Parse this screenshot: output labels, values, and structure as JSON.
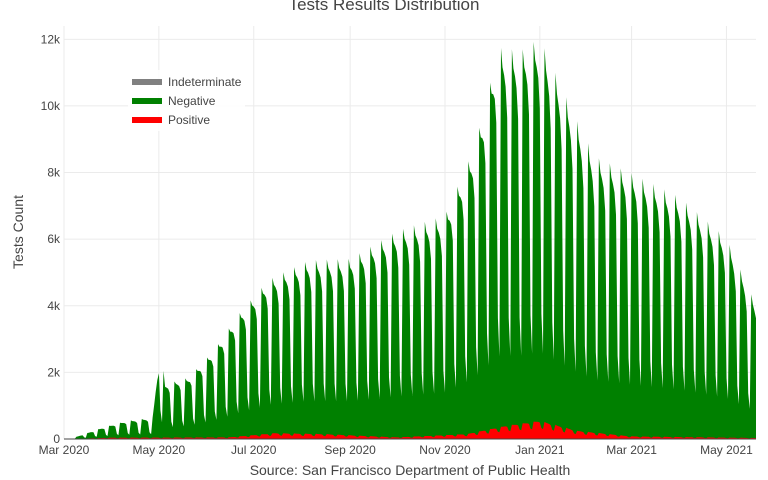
{
  "chart_data": {
    "type": "area",
    "title": "Tests Results Distribution",
    "xlabel": "Source: San Francisco Department of Public Health",
    "ylabel": "Tests Count",
    "x_range": [
      "2020-03-01",
      "2021-05-20"
    ],
    "ylim": [
      0,
      12400
    ],
    "y_ticks": [
      {
        "value": 0,
        "label": "0"
      },
      {
        "value": 2000,
        "label": "2k"
      },
      {
        "value": 4000,
        "label": "4k"
      },
      {
        "value": 6000,
        "label": "6k"
      },
      {
        "value": 8000,
        "label": "8k"
      },
      {
        "value": 10000,
        "label": "10k"
      },
      {
        "value": 12000,
        "label": "12k"
      }
    ],
    "x_ticks": [
      {
        "date": "2020-03-01",
        "label": "Mar 2020"
      },
      {
        "date": "2020-05-01",
        "label": "May 2020"
      },
      {
        "date": "2020-07-01",
        "label": "Jul 2020"
      },
      {
        "date": "2020-09-01",
        "label": "Sep 2020"
      },
      {
        "date": "2020-11-01",
        "label": "Nov 2020"
      },
      {
        "date": "2021-01-01",
        "label": "Jan 2021"
      },
      {
        "date": "2021-03-01",
        "label": "Mar 2021"
      },
      {
        "date": "2021-05-01",
        "label": "May 2021"
      }
    ],
    "stacked": true,
    "pattern": "weekly cycle: values shown are weekday peaks; weekends drop to about 15-25% of the peak",
    "grid": true,
    "legend_position": "top-left",
    "series": [
      {
        "name": "Indeterminate",
        "color": "#808080",
        "values": [
          {
            "x": "2020-03-01",
            "y": 0
          },
          {
            "x": "2021-05-20",
            "y": 0
          }
        ]
      },
      {
        "name": "Negative",
        "color": "#008000",
        "weekly_peaks": [
          {
            "x": "2020-03-05",
            "y": 0
          },
          {
            "x": "2020-03-15",
            "y": 150
          },
          {
            "x": "2020-03-25",
            "y": 300
          },
          {
            "x": "2020-04-10",
            "y": 500
          },
          {
            "x": "2020-04-27",
            "y": 600
          },
          {
            "x": "2020-05-02",
            "y": 2800
          },
          {
            "x": "2020-05-05",
            "y": 1600
          },
          {
            "x": "2020-05-20",
            "y": 1800
          },
          {
            "x": "2020-06-05",
            "y": 2600
          },
          {
            "x": "2020-06-20",
            "y": 3600
          },
          {
            "x": "2020-07-10",
            "y": 4600
          },
          {
            "x": "2020-08-05",
            "y": 5200
          },
          {
            "x": "2020-09-01",
            "y": 5300
          },
          {
            "x": "2020-10-01",
            "y": 6200
          },
          {
            "x": "2020-11-01",
            "y": 6600
          },
          {
            "x": "2020-11-20",
            "y": 8600
          },
          {
            "x": "2020-11-27",
            "y": 9800
          },
          {
            "x": "2020-12-05",
            "y": 11400
          },
          {
            "x": "2020-12-20",
            "y": 11200
          },
          {
            "x": "2021-01-01",
            "y": 11500
          },
          {
            "x": "2021-01-15",
            "y": 10200
          },
          {
            "x": "2021-02-05",
            "y": 8300
          },
          {
            "x": "2021-03-01",
            "y": 7900
          },
          {
            "x": "2021-04-01",
            "y": 7200
          },
          {
            "x": "2021-05-01",
            "y": 6000
          },
          {
            "x": "2021-05-20",
            "y": 4000
          }
        ]
      },
      {
        "name": "Positive",
        "color": "#ff0000",
        "weekly_peaks": [
          {
            "x": "2020-03-05",
            "y": 0
          },
          {
            "x": "2020-04-01",
            "y": 40
          },
          {
            "x": "2020-06-15",
            "y": 50
          },
          {
            "x": "2020-07-15",
            "y": 180
          },
          {
            "x": "2020-08-15",
            "y": 150
          },
          {
            "x": "2020-10-01",
            "y": 50
          },
          {
            "x": "2020-11-15",
            "y": 150
          },
          {
            "x": "2020-12-10",
            "y": 400
          },
          {
            "x": "2021-01-01",
            "y": 550
          },
          {
            "x": "2021-01-25",
            "y": 250
          },
          {
            "x": "2021-03-01",
            "y": 80
          },
          {
            "x": "2021-05-20",
            "y": 30
          }
        ]
      }
    ]
  }
}
